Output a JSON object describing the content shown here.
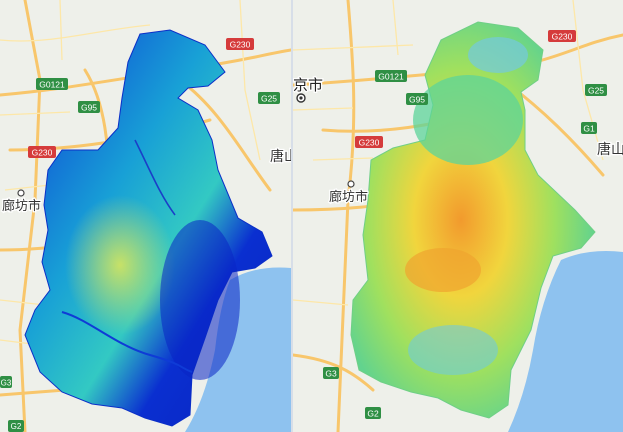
{
  "maps": [
    {
      "id": "left",
      "colors": {
        "base": "#eef0ea",
        "water": "#aad3f5",
        "sea": "#8ec2ef",
        "road_major": "#f8c66b",
        "road_minor": "#fde7a8",
        "overlay_dark": "#0a2fd0",
        "overlay_mid": "#17a7d8",
        "overlay_light": "#53d7b1",
        "overlay_hot": "#d8e65a"
      },
      "labels": {
        "g230_top": "G230",
        "g0121": "G0121",
        "g95": "G95",
        "g25": "G25",
        "g230_left": "G230",
        "langfang": "廊坊市",
        "tang": "唐山",
        "g3": "G3",
        "g2": "G2"
      }
    },
    {
      "id": "right",
      "colors": {
        "base": "#eef0ea",
        "water": "#aad3f5",
        "sea": "#8ec2ef",
        "road_major": "#f8c66b",
        "road_minor": "#fde7a8",
        "overlay_green": "#5ed48b",
        "overlay_yellow": "#e9e34c",
        "overlay_orange": "#f2a12d",
        "overlay_blue": "#6ccbe5"
      },
      "labels": {
        "beijing": "京市",
        "g230_top": "G230",
        "g0121": "G0121",
        "g95": "G95",
        "g25": "G25",
        "g1": "G1",
        "g230_mid": "G230",
        "langfang": "廊坊市",
        "tang": "唐山",
        "g3": "G3",
        "g2": "G2"
      }
    }
  ]
}
